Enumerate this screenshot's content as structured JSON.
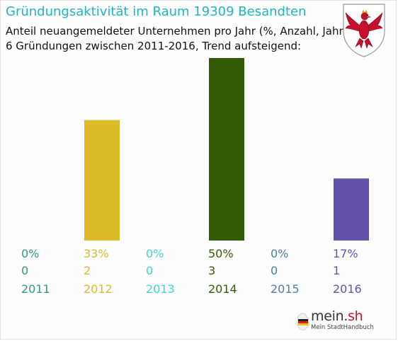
{
  "chart_data": {
    "type": "bar",
    "title": "Gründungsaktivität im Raum 19309 Besandten",
    "subtitle_lines": [
      "Anteil neuangemeldeter Unternehmen pro Jahr (%, Anzahl, Jahr)",
      "6 Gründungen zwischen 2011-2016, Trend aufsteigend:"
    ],
    "categories": [
      "2011",
      "2012",
      "2013",
      "2014",
      "2015",
      "2016"
    ],
    "values": [
      0,
      33,
      0,
      50,
      0,
      17
    ],
    "percent_labels": [
      "0%",
      "33%",
      "0%",
      "50%",
      "0%",
      "17%"
    ],
    "counts": [
      0,
      2,
      0,
      3,
      0,
      1
    ],
    "colors": [
      "#2a9d7f",
      "#dcbb28",
      "#3fd6d0",
      "#345a05",
      "#4a7fa6",
      "#6352a8"
    ],
    "ylim": [
      0,
      50
    ],
    "grid": false,
    "legend": "none"
  },
  "logo": {
    "brand_main": "mein.",
    "brand_accent": "sh",
    "tagline": "Mein StadtHandbuch",
    "crest_icon": "brandenburg-eagle-crest-icon"
  }
}
